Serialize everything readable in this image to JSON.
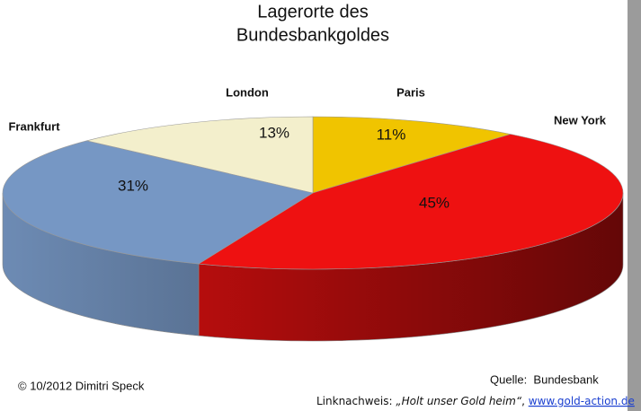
{
  "chart_data": {
    "type": "pie3d",
    "title": [
      "Lagerorte des",
      "Bundesbankgoldes"
    ],
    "categories": [
      "Paris",
      "New York",
      "Frankfurt",
      "London"
    ],
    "values": [
      11,
      45,
      31,
      13
    ],
    "value_labels": [
      "11%",
      "45%",
      "31%",
      "13%"
    ],
    "colors": [
      "#f0c400",
      "#ee1111",
      "#7697c4",
      "#f3efcc"
    ],
    "footer": {
      "copyright": "© 10/2012 Dimitri Speck",
      "source": "Quelle:  Bundesbank",
      "link_prefix": "Linknachweis: ",
      "link_quote": "„Holt unser Gold heim“",
      "link_sep": ", ",
      "link_url": "www.gold-action.de"
    }
  }
}
